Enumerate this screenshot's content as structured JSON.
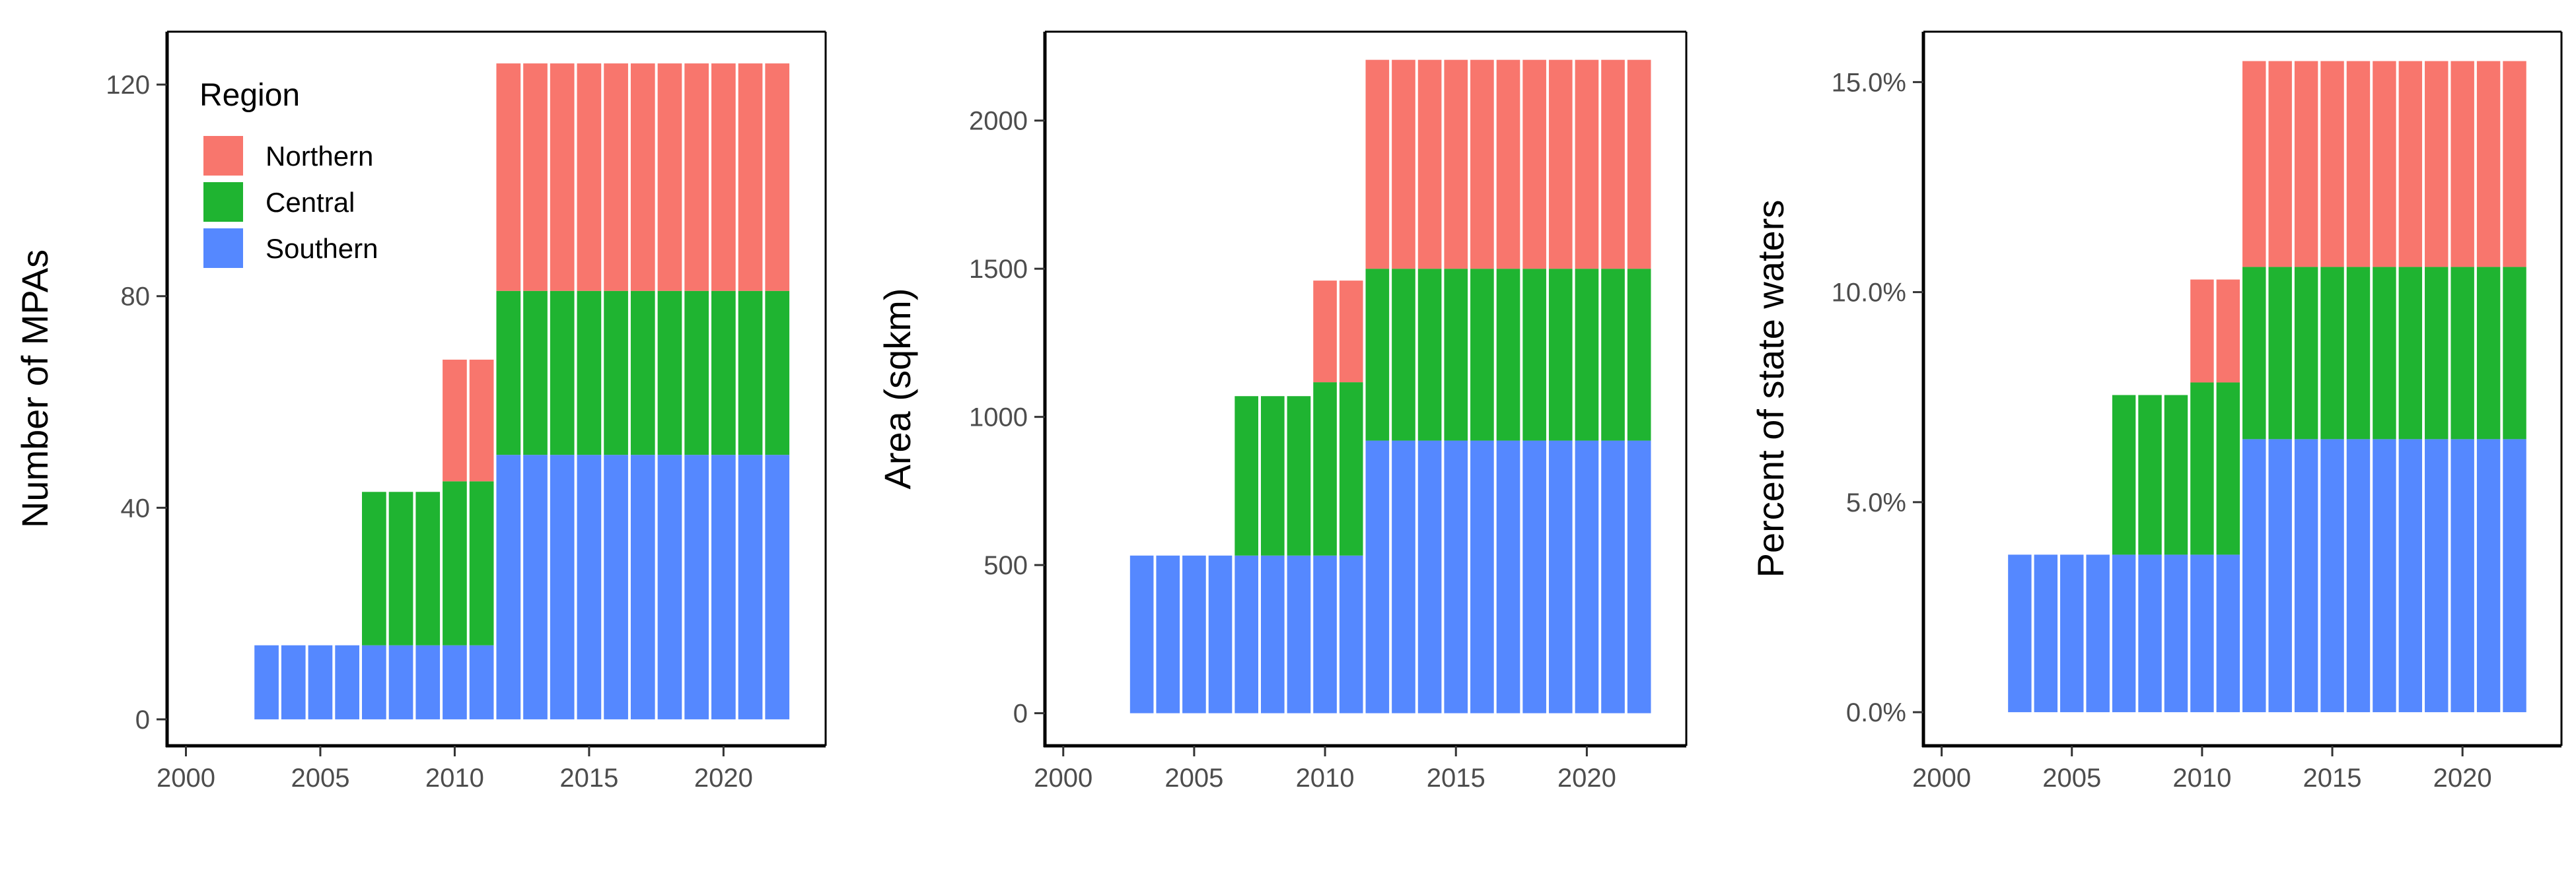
{
  "colors": {
    "Northern": "#F8766D",
    "Central": "#1FB431",
    "Southern": "#5588FF"
  },
  "legend": {
    "title": "Region",
    "items": [
      {
        "label": "Northern",
        "color": "#F8766D"
      },
      {
        "label": "Central",
        "color": "#1FB431"
      },
      {
        "label": "Southern",
        "color": "#5588FF"
      }
    ]
  },
  "chart_data": [
    {
      "type": "bar",
      "stacked": true,
      "xlabel": "",
      "ylabel": "Number of MPAs",
      "xlim": [
        1999.3,
        2023.8
      ],
      "ylim": [
        -5,
        130
      ],
      "xticks": [
        2000,
        2005,
        2010,
        2015,
        2020
      ],
      "xtick_labels": [
        "2000",
        "2005",
        "2010",
        "2015",
        "2020"
      ],
      "yticks": [
        0,
        40,
        80,
        120
      ],
      "ytick_labels": [
        "0",
        "40",
        "80",
        "120"
      ],
      "grid": false,
      "legend_position": "top-left",
      "x": [
        2003,
        2004,
        2005,
        2006,
        2007,
        2008,
        2009,
        2010,
        2011,
        2012,
        2013,
        2014,
        2015,
        2016,
        2017,
        2018,
        2019,
        2020,
        2021,
        2022
      ],
      "series": [
        {
          "name": "Southern",
          "values": [
            14,
            14,
            14,
            14,
            14,
            14,
            14,
            14,
            14,
            50,
            50,
            50,
            50,
            50,
            50,
            50,
            50,
            50,
            50,
            50
          ]
        },
        {
          "name": "Central",
          "values": [
            0,
            0,
            0,
            0,
            29,
            29,
            29,
            31,
            31,
            31,
            31,
            31,
            31,
            31,
            31,
            31,
            31,
            31,
            31,
            31
          ]
        },
        {
          "name": "Northern",
          "values": [
            0,
            0,
            0,
            0,
            0,
            0,
            0,
            23,
            23,
            43,
            43,
            43,
            43,
            43,
            43,
            43,
            43,
            43,
            43,
            43
          ]
        }
      ]
    },
    {
      "type": "bar",
      "stacked": true,
      "xlabel": "",
      "ylabel": "Area (sqkm)",
      "xlim": [
        1999.3,
        2023.8
      ],
      "ylim": [
        -110,
        2300
      ],
      "xticks": [
        2000,
        2005,
        2010,
        2015,
        2020
      ],
      "xtick_labels": [
        "2000",
        "2005",
        "2010",
        "2015",
        "2020"
      ],
      "yticks": [
        0,
        500,
        1000,
        1500,
        2000
      ],
      "ytick_labels": [
        "0",
        "500",
        "1000",
        "1500",
        "2000"
      ],
      "grid": false,
      "x": [
        2003,
        2004,
        2005,
        2006,
        2007,
        2008,
        2009,
        2010,
        2011,
        2012,
        2013,
        2014,
        2015,
        2016,
        2017,
        2018,
        2019,
        2020,
        2021,
        2022
      ],
      "series": [
        {
          "name": "Southern",
          "values": [
            532,
            532,
            532,
            532,
            532,
            532,
            532,
            532,
            532,
            920,
            920,
            920,
            920,
            920,
            920,
            920,
            920,
            920,
            920,
            920
          ]
        },
        {
          "name": "Central",
          "values": [
            0,
            0,
            0,
            0,
            538,
            538,
            538,
            585,
            585,
            580,
            580,
            580,
            580,
            580,
            580,
            580,
            580,
            580,
            580,
            580
          ]
        },
        {
          "name": "Northern",
          "values": [
            0,
            0,
            0,
            0,
            0,
            0,
            0,
            343,
            343,
            705,
            705,
            705,
            705,
            705,
            705,
            705,
            705,
            705,
            705,
            705
          ]
        }
      ]
    },
    {
      "type": "bar",
      "stacked": true,
      "xlabel": "",
      "ylabel": "Percent of state waters",
      "xlim": [
        1999.3,
        2023.8
      ],
      "ylim": [
        -0.8,
        16.2
      ],
      "xticks": [
        2000,
        2005,
        2010,
        2015,
        2020
      ],
      "xtick_labels": [
        "2000",
        "2005",
        "2010",
        "2015",
        "2020"
      ],
      "yticks": [
        0,
        5,
        10,
        15
      ],
      "ytick_labels": [
        "0.0%",
        "5.0%",
        "10.0%",
        "15.0%"
      ],
      "grid": false,
      "x": [
        2003,
        2004,
        2005,
        2006,
        2007,
        2008,
        2009,
        2010,
        2011,
        2012,
        2013,
        2014,
        2015,
        2016,
        2017,
        2018,
        2019,
        2020,
        2021,
        2022
      ],
      "series": [
        {
          "name": "Southern",
          "values": [
            3.75,
            3.75,
            3.75,
            3.75,
            3.75,
            3.75,
            3.75,
            3.75,
            3.75,
            6.5,
            6.5,
            6.5,
            6.5,
            6.5,
            6.5,
            6.5,
            6.5,
            6.5,
            6.5,
            6.5
          ]
        },
        {
          "name": "Central",
          "values": [
            0,
            0,
            0,
            0,
            3.8,
            3.8,
            3.8,
            4.1,
            4.1,
            4.1,
            4.1,
            4.1,
            4.1,
            4.1,
            4.1,
            4.1,
            4.1,
            4.1,
            4.1,
            4.1
          ]
        },
        {
          "name": "Northern",
          "values": [
            0,
            0,
            0,
            0,
            0,
            0,
            0,
            2.45,
            2.45,
            4.9,
            4.9,
            4.9,
            4.9,
            4.9,
            4.9,
            4.9,
            4.9,
            4.9,
            4.9,
            4.9
          ]
        }
      ]
    }
  ]
}
